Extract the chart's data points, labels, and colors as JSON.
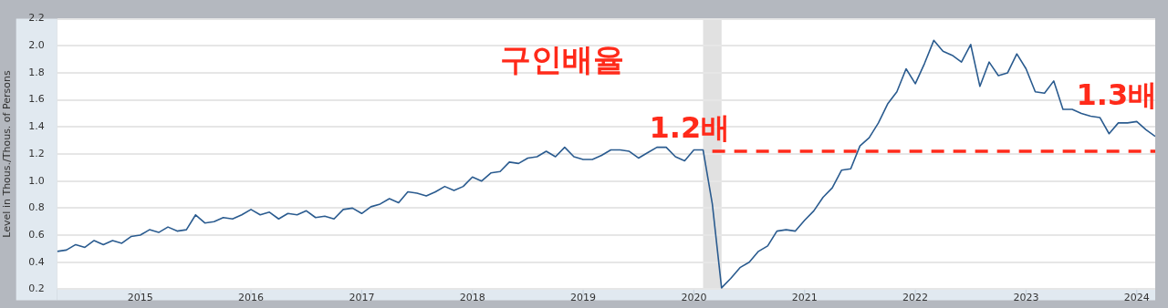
{
  "chart_data": {
    "type": "line",
    "title": "구인배율",
    "ylabel": "Level in Thous./Thous. of Persons",
    "xlim": [
      "2014-04",
      "2024-03"
    ],
    "xticks": [
      "2015",
      "2016",
      "2017",
      "2018",
      "2019",
      "2020",
      "2021",
      "2022",
      "2023",
      "2024"
    ],
    "ylim": [
      0.2,
      2.2
    ],
    "yticks": [
      0.2,
      0.4,
      0.6,
      0.8,
      {
        "value": 1,
        "label": "1.0"
      },
      1.2,
      1.4,
      1.6,
      1.8,
      {
        "value": 2,
        "label": "2.0"
      },
      2.2
    ],
    "grid": "y",
    "marker": "none",
    "bands": [
      {
        "axis": "x",
        "from": "2020-02",
        "to": "2020-04",
        "color": "#e1e1e1"
      }
    ],
    "annotations": [
      "1.2배",
      "1.3배"
    ],
    "series": [
      {
        "color": "#2a5b8f",
        "line_style": "solid",
        "x": [
          "2014-04",
          "2014-05",
          "2014-06",
          "2014-07",
          "2014-08",
          "2014-09",
          "2014-10",
          "2014-11",
          "2014-12",
          "2015-01",
          "2015-02",
          "2015-03",
          "2015-04",
          "2015-05",
          "2015-06",
          "2015-07",
          "2015-08",
          "2015-09",
          "2015-10",
          "2015-11",
          "2015-12",
          "2016-01",
          "2016-02",
          "2016-03",
          "2016-04",
          "2016-05",
          "2016-06",
          "2016-07",
          "2016-08",
          "2016-09",
          "2016-10",
          "2016-11",
          "2016-12",
          "2017-01",
          "2017-02",
          "2017-03",
          "2017-04",
          "2017-05",
          "2017-06",
          "2017-07",
          "2017-08",
          "2017-09",
          "2017-10",
          "2017-11",
          "2017-12",
          "2018-01",
          "2018-02",
          "2018-03",
          "2018-04",
          "2018-05",
          "2018-06",
          "2018-07",
          "2018-08",
          "2018-09",
          "2018-10",
          "2018-11",
          "2018-12",
          "2019-01",
          "2019-02",
          "2019-03",
          "2019-04",
          "2019-05",
          "2019-06",
          "2019-07",
          "2019-08",
          "2019-09",
          "2019-10",
          "2019-11",
          "2019-12",
          "2020-01",
          "2020-02",
          "2020-03",
          "2020-04",
          "2020-05",
          "2020-06",
          "2020-07",
          "2020-08",
          "2020-09",
          "2020-10",
          "2020-11",
          "2020-12",
          "2021-01",
          "2021-02",
          "2021-03",
          "2021-04",
          "2021-05",
          "2021-06",
          "2021-07",
          "2021-08",
          "2021-09",
          "2021-10",
          "2021-11",
          "2021-12",
          "2022-01",
          "2022-02",
          "2022-03",
          "2022-04",
          "2022-05",
          "2022-06",
          "2022-07",
          "2022-08",
          "2022-09",
          "2022-10",
          "2022-11",
          "2022-12",
          "2023-01",
          "2023-02",
          "2023-03",
          "2023-04",
          "2023-05",
          "2023-06",
          "2023-07",
          "2023-08",
          "2023-09",
          "2023-10",
          "2023-11",
          "2023-12",
          "2024-01",
          "2024-02",
          "2024-03"
        ],
        "values": [
          0.48,
          0.49,
          0.53,
          0.51,
          0.56,
          0.53,
          0.56,
          0.54,
          0.59,
          0.6,
          0.64,
          0.62,
          0.66,
          0.63,
          0.64,
          0.75,
          0.69,
          0.7,
          0.73,
          0.72,
          0.75,
          0.79,
          0.75,
          0.77,
          0.72,
          0.76,
          0.75,
          0.78,
          0.73,
          0.74,
          0.72,
          0.79,
          0.8,
          0.76,
          0.81,
          0.83,
          0.87,
          0.84,
          0.92,
          0.91,
          0.89,
          0.92,
          0.96,
          0.93,
          0.96,
          1.03,
          1.0,
          1.06,
          1.07,
          1.14,
          1.13,
          1.17,
          1.18,
          1.22,
          1.18,
          1.25,
          1.18,
          1.16,
          1.16,
          1.19,
          1.23,
          1.23,
          1.22,
          1.17,
          1.21,
          1.25,
          1.25,
          1.18,
          1.15,
          1.23,
          1.23,
          0.83,
          0.21,
          0.28,
          0.36,
          0.4,
          0.48,
          0.52,
          0.63,
          0.64,
          0.63,
          0.71,
          0.78,
          0.88,
          0.95,
          1.08,
          1.09,
          1.26,
          1.32,
          1.43,
          1.57,
          1.66,
          1.83,
          1.72,
          1.87,
          2.04,
          1.96,
          1.93,
          1.88,
          2.01,
          1.7,
          1.88,
          1.78,
          1.8,
          1.94,
          1.83,
          1.66,
          1.65,
          1.74,
          1.53,
          1.53,
          1.5,
          1.48,
          1.47,
          1.35,
          1.43,
          1.43,
          1.44,
          1.38,
          1.33
        ]
      },
      {
        "type": "line",
        "color": "#ff2a1a",
        "line_style": "dashed",
        "x": [
          "2020-03",
          "2024-03"
        ],
        "values": [
          1.22,
          1.22
        ]
      }
    ]
  }
}
